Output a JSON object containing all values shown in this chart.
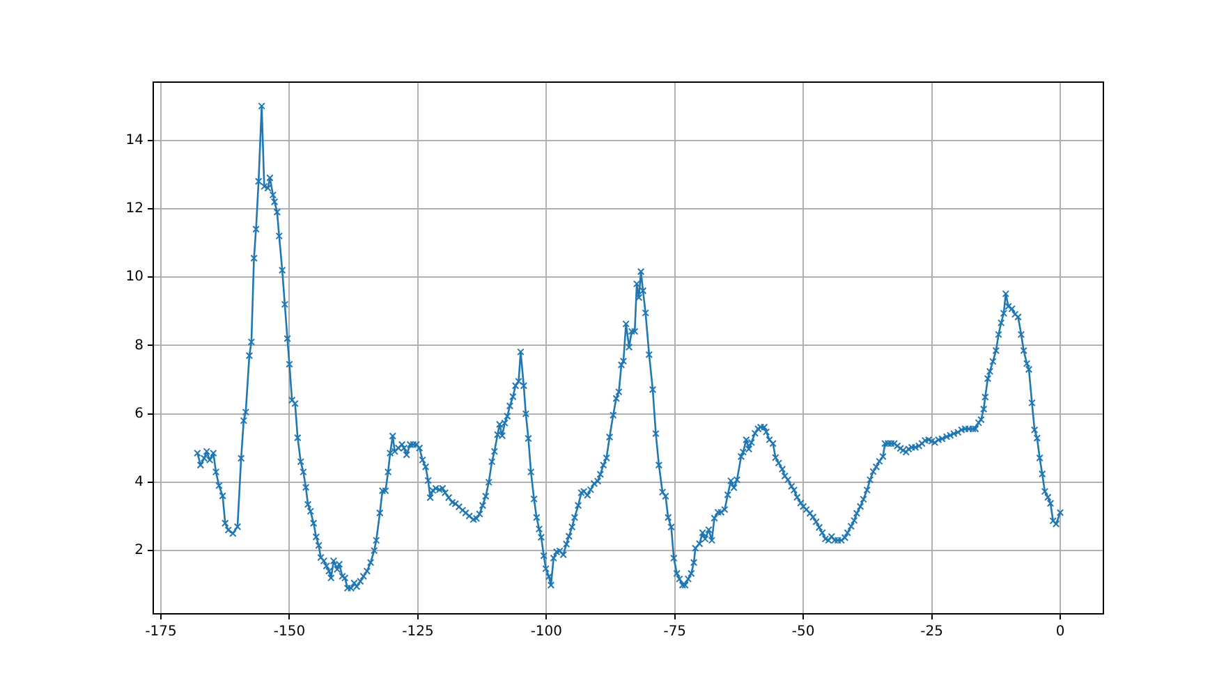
{
  "chart_data": {
    "type": "line",
    "xlim": [
      -176.5,
      8.4
    ],
    "ylim": [
      0.15,
      15.7
    ],
    "xticks": [
      -175,
      -150,
      -125,
      -100,
      -75,
      -50,
      -25,
      0
    ],
    "yticks": [
      2,
      4,
      6,
      8,
      10,
      12,
      14
    ],
    "grid": true,
    "marker": "cross",
    "line_style": "solid",
    "series": [
      {
        "color": "#1f77b4",
        "x": [
          -167.9,
          -167.3,
          -166.6,
          -166.1,
          -165.5,
          -164.8,
          -164.3,
          -163.7,
          -163.0,
          -162.5,
          -161.9,
          -161.0,
          -160.1,
          -159.4,
          -158.9,
          -158.5,
          -157.8,
          -157.4,
          -156.9,
          -156.5,
          -156.0,
          -155.4,
          -154.9,
          -154.2,
          -153.8,
          -153.2,
          -152.9,
          -152.4,
          -152.0,
          -151.4,
          -150.9,
          -150.4,
          -150.0,
          -149.5,
          -148.9,
          -148.4,
          -147.8,
          -147.3,
          -146.8,
          -146.4,
          -145.9,
          -145.3,
          -144.8,
          -144.3,
          -143.9,
          -143.3,
          -142.8,
          -142.3,
          -141.9,
          -141.4,
          -140.7,
          -140.3,
          -139.7,
          -139.2,
          -138.7,
          -138.0,
          -137.4,
          -136.9,
          -136.2,
          -135.6,
          -134.9,
          -134.2,
          -133.5,
          -133.1,
          -132.4,
          -131.9,
          -131.3,
          -130.8,
          -130.4,
          -129.9,
          -129.5,
          -128.8,
          -128.1,
          -127.7,
          -127.2,
          -126.5,
          -125.9,
          -125.3,
          -124.7,
          -124.1,
          -123.5,
          -123.0,
          -122.6,
          -122.1,
          -121.5,
          -120.8,
          -120.2,
          -119.7,
          -119.0,
          -118.3,
          -117.7,
          -117.0,
          -116.3,
          -115.7,
          -115.0,
          -114.2,
          -113.6,
          -113.0,
          -112.4,
          -111.8,
          -111.2,
          -110.6,
          -110.1,
          -109.5,
          -109.1,
          -108.6,
          -108.1,
          -107.6,
          -107.1,
          -106.5,
          -106.0,
          -105.4,
          -105.0,
          -104.4,
          -104.0,
          -103.5,
          -103.0,
          -102.4,
          -101.9,
          -101.4,
          -101.0,
          -100.5,
          -100.1,
          -99.5,
          -99.1,
          -98.6,
          -98.0,
          -97.4,
          -96.7,
          -96.1,
          -95.6,
          -95.0,
          -94.5,
          -93.8,
          -93.2,
          -92.7,
          -92.0,
          -91.4,
          -90.7,
          -90.0,
          -89.5,
          -88.9,
          -88.3,
          -87.7,
          -87.0,
          -86.4,
          -85.9,
          -85.4,
          -85.0,
          -84.5,
          -83.9,
          -83.4,
          -82.8,
          -82.4,
          -82.0,
          -81.6,
          -81.2,
          -80.7,
          -80.0,
          -79.3,
          -78.7,
          -78.1,
          -77.4,
          -76.8,
          -76.3,
          -75.7,
          -75.2,
          -74.6,
          -74.1,
          -73.5,
          -73.0,
          -72.4,
          -71.8,
          -71.3,
          -71.0,
          -70.2,
          -69.6,
          -69.1,
          -68.4,
          -67.8,
          -67.3,
          -66.6,
          -66.0,
          -65.3,
          -64.7,
          -64.1,
          -63.5,
          -62.9,
          -62.1,
          -61.7,
          -61.1,
          -60.6,
          -60.1,
          -59.4,
          -58.8,
          -58.3,
          -57.6,
          -57.2,
          -56.6,
          -55.9,
          -55.4,
          -54.8,
          -54.1,
          -53.6,
          -53.0,
          -52.3,
          -51.8,
          -51.2,
          -50.5,
          -50.0,
          -49.4,
          -48.7,
          -48.1,
          -47.5,
          -46.9,
          -46.3,
          -45.7,
          -45.1,
          -44.5,
          -43.9,
          -43.3,
          -42.6,
          -41.9,
          -41.4,
          -40.7,
          -40.1,
          -39.6,
          -38.9,
          -38.3,
          -37.6,
          -37.0,
          -36.4,
          -35.8,
          -35.2,
          -34.5,
          -34.1,
          -33.5,
          -32.9,
          -32.3,
          -31.7,
          -31.1,
          -30.6,
          -30.0,
          -29.5,
          -28.9,
          -28.2,
          -27.5,
          -26.9,
          -26.3,
          -25.6,
          -25.0,
          -24.4,
          -23.7,
          -23.0,
          -22.1,
          -21.4,
          -20.7,
          -19.9,
          -19.2,
          -18.5,
          -17.8,
          -17.0,
          -16.5,
          -15.9,
          -15.4,
          -14.9,
          -14.6,
          -14.1,
          -13.7,
          -13.1,
          -12.5,
          -12.0,
          -11.5,
          -11.0,
          -10.6,
          -10.1,
          -9.4,
          -8.8,
          -8.2,
          -7.6,
          -7.1,
          -6.5,
          -6.1,
          -5.5,
          -5.0,
          -4.5,
          -4.0,
          -3.5,
          -3.0,
          -2.4,
          -1.9,
          -1.4,
          -0.8,
          0.0
        ],
        "values": [
          4.85,
          4.5,
          4.7,
          4.9,
          4.65,
          4.85,
          4.3,
          3.9,
          3.6,
          2.8,
          2.6,
          2.5,
          2.7,
          4.7,
          5.8,
          6.05,
          7.7,
          8.1,
          10.55,
          11.4,
          12.8,
          15.0,
          12.65,
          12.6,
          12.9,
          12.4,
          12.2,
          11.9,
          11.2,
          10.2,
          9.2,
          8.2,
          7.45,
          6.4,
          6.3,
          5.3,
          4.6,
          4.3,
          3.85,
          3.35,
          3.15,
          2.8,
          2.4,
          2.15,
          1.8,
          1.7,
          1.55,
          1.4,
          1.2,
          1.7,
          1.45,
          1.6,
          1.25,
          1.2,
          0.9,
          0.9,
          1.05,
          0.95,
          1.1,
          1.25,
          1.4,
          1.65,
          2.0,
          2.3,
          3.1,
          3.75,
          3.75,
          4.3,
          4.85,
          5.35,
          4.9,
          5.0,
          5.1,
          5.0,
          4.8,
          5.1,
          5.1,
          5.1,
          5.0,
          4.65,
          4.45,
          4.05,
          3.55,
          3.76,
          3.82,
          3.78,
          3.82,
          3.69,
          3.55,
          3.41,
          3.37,
          3.28,
          3.18,
          3.1,
          3.01,
          2.91,
          2.94,
          3.07,
          3.32,
          3.59,
          4.0,
          4.6,
          4.9,
          5.39,
          5.69,
          5.36,
          5.73,
          5.93,
          6.23,
          6.5,
          6.82,
          6.95,
          7.81,
          6.82,
          6.0,
          5.28,
          4.3,
          3.51,
          2.97,
          2.63,
          2.39,
          1.85,
          1.47,
          1.24,
          0.99,
          1.78,
          1.96,
          1.99,
          1.88,
          2.19,
          2.42,
          2.69,
          2.97,
          3.32,
          3.69,
          3.73,
          3.62,
          3.78,
          3.96,
          4.03,
          4.23,
          4.5,
          4.71,
          5.32,
          5.96,
          6.45,
          6.64,
          7.43,
          7.54,
          8.63,
          7.95,
          8.41,
          8.41,
          9.8,
          9.4,
          10.16,
          9.6,
          8.95,
          7.73,
          6.71,
          5.42,
          4.5,
          3.71,
          3.59,
          2.97,
          2.69,
          1.78,
          1.33,
          1.17,
          0.99,
          0.99,
          1.17,
          1.33,
          1.65,
          2.07,
          2.2,
          2.52,
          2.34,
          2.61,
          2.3,
          2.95,
          3.12,
          3.12,
          3.2,
          3.63,
          4.04,
          3.84,
          4.07,
          4.75,
          4.88,
          5.24,
          4.97,
          5.16,
          5.43,
          5.56,
          5.61,
          5.61,
          5.47,
          5.24,
          5.13,
          4.72,
          4.56,
          4.38,
          4.18,
          4.07,
          3.88,
          3.77,
          3.56,
          3.39,
          3.29,
          3.2,
          3.09,
          2.98,
          2.84,
          2.68,
          2.52,
          2.34,
          2.3,
          2.41,
          2.3,
          2.3,
          2.3,
          2.38,
          2.52,
          2.71,
          2.88,
          3.09,
          3.29,
          3.5,
          3.77,
          4.07,
          4.31,
          4.45,
          4.61,
          4.75,
          5.13,
          5.13,
          5.13,
          5.13,
          5.06,
          4.99,
          4.93,
          4.88,
          4.97,
          5.02,
          5.02,
          5.06,
          5.13,
          5.22,
          5.24,
          5.2,
          5.16,
          5.24,
          5.27,
          5.33,
          5.37,
          5.42,
          5.46,
          5.53,
          5.56,
          5.56,
          5.56,
          5.56,
          5.74,
          5.83,
          6.14,
          6.49,
          7.03,
          7.24,
          7.53,
          7.85,
          8.32,
          8.66,
          8.94,
          9.51,
          9.14,
          9.07,
          8.91,
          8.83,
          8.32,
          7.85,
          7.47,
          7.3,
          6.32,
          5.53,
          5.29,
          4.71,
          4.24,
          3.73,
          3.56,
          3.38,
          2.87,
          2.78,
          3.11
        ]
      }
    ]
  }
}
